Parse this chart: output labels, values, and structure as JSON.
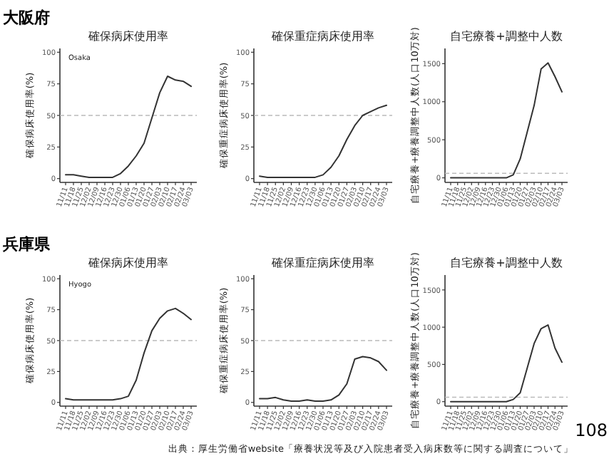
{
  "chart_data": [
    {
      "type": "line",
      "title": "確保病床使用率",
      "ylabel": "確保病床使用率(%)",
      "categories": [
        "11/11",
        "11/18",
        "11/25",
        "12/02",
        "12/09",
        "12/16",
        "12/23",
        "12/30",
        "01/06",
        "01/13",
        "01/20",
        "01/27",
        "02/03",
        "02/10",
        "02/17",
        "02/24",
        "03/03"
      ],
      "values": [
        3,
        3,
        2,
        1,
        1,
        1,
        1,
        4,
        10,
        18,
        28,
        48,
        68,
        81,
        78,
        77,
        73
      ],
      "color": "#333333",
      "ylim": [
        -3,
        103
      ],
      "yticks": [
        0,
        25,
        50,
        75,
        100
      ],
      "ref_lines": [
        {
          "axis": "y",
          "value": 50,
          "color": "#bbbbbb",
          "line_style": "dashed"
        }
      ],
      "annotations": [
        "大阪府",
        "Osaka"
      ]
    },
    {
      "type": "line",
      "title": "確保重症病床使用率",
      "ylabel": "確保重症病床使用率(%)",
      "categories": [
        "11/11",
        "11/18",
        "11/25",
        "12/02",
        "12/09",
        "12/16",
        "12/23",
        "12/30",
        "01/06",
        "01/13",
        "01/20",
        "01/27",
        "02/03",
        "02/10",
        "02/17",
        "02/24",
        "03/03"
      ],
      "values": [
        2,
        1,
        1,
        1,
        1,
        1,
        1,
        1,
        3,
        9,
        18,
        31,
        42,
        50,
        53,
        56,
        58
      ],
      "color": "#333333",
      "ylim": [
        -3,
        103
      ],
      "yticks": [
        0,
        25,
        50,
        75,
        100
      ],
      "ref_lines": [
        {
          "axis": "y",
          "value": 50,
          "color": "#bbbbbb",
          "line_style": "dashed"
        }
      ]
    },
    {
      "type": "line",
      "title": "自宅療養+調整中人数",
      "ylabel": "自宅療養+療養調整中人数(人口10万対)",
      "categories": [
        "11/11",
        "11/18",
        "11/25",
        "12/02",
        "12/09",
        "12/16",
        "12/23",
        "12/30",
        "01/06",
        "01/13",
        "01/20",
        "01/27",
        "02/03",
        "02/10",
        "02/17",
        "02/24",
        "03/03"
      ],
      "values": [
        0,
        0,
        0,
        0,
        0,
        0,
        0,
        0,
        0,
        40,
        250,
        600,
        950,
        1430,
        1510,
        1330,
        1130
      ],
      "color": "#333333",
      "ylim": [
        -60,
        1700
      ],
      "yticks": [
        0,
        500,
        1000,
        1500
      ],
      "ref_lines": [
        {
          "axis": "y",
          "value": 60,
          "color": "#bbbbbb",
          "line_style": "dashed"
        }
      ]
    },
    {
      "type": "line",
      "title": "確保病床使用率",
      "ylabel": "確保病床使用率(%)",
      "categories": [
        "11/11",
        "11/18",
        "11/25",
        "12/02",
        "12/09",
        "12/16",
        "12/23",
        "12/30",
        "01/06",
        "01/13",
        "01/20",
        "01/27",
        "02/03",
        "02/10",
        "02/17",
        "02/24",
        "03/03"
      ],
      "values": [
        3,
        2,
        2,
        2,
        2,
        2,
        2,
        3,
        5,
        18,
        40,
        58,
        68,
        74,
        76,
        72,
        67
      ],
      "color": "#333333",
      "ylim": [
        -3,
        103
      ],
      "yticks": [
        0,
        25,
        50,
        75,
        100
      ],
      "ref_lines": [
        {
          "axis": "y",
          "value": 50,
          "color": "#bbbbbb",
          "line_style": "dashed"
        }
      ],
      "annotations": [
        "兵庫県",
        "Hyogo"
      ]
    },
    {
      "type": "line",
      "title": "確保重症病床使用率",
      "ylabel": "確保重症病床使用率(%)",
      "categories": [
        "11/11",
        "11/18",
        "11/25",
        "12/02",
        "12/09",
        "12/16",
        "12/23",
        "12/30",
        "01/06",
        "01/13",
        "01/20",
        "01/27",
        "02/03",
        "02/10",
        "02/17",
        "02/24",
        "03/03"
      ],
      "values": [
        3,
        3,
        4,
        2,
        1,
        1,
        2,
        1,
        1,
        2,
        6,
        15,
        35,
        37,
        36,
        33,
        26
      ],
      "color": "#333333",
      "ylim": [
        -3,
        103
      ],
      "yticks": [
        0,
        25,
        50,
        75,
        100
      ],
      "ref_lines": [
        {
          "axis": "y",
          "value": 50,
          "color": "#bbbbbb",
          "line_style": "dashed"
        }
      ]
    },
    {
      "type": "line",
      "title": "自宅療養+調整中人数",
      "ylabel": "自宅療養+療養調整中人数(人口10万対)",
      "categories": [
        "11/11",
        "11/18",
        "11/25",
        "12/02",
        "12/09",
        "12/16",
        "12/23",
        "12/30",
        "01/06",
        "01/13",
        "01/20",
        "01/27",
        "02/03",
        "02/10",
        "02/17",
        "02/24",
        "03/03"
      ],
      "values": [
        0,
        0,
        0,
        0,
        0,
        0,
        0,
        0,
        0,
        30,
        120,
        450,
        780,
        980,
        1030,
        720,
        530
      ],
      "color": "#333333",
      "ylim": [
        -60,
        1700
      ],
      "yticks": [
        0,
        500,
        1000,
        1500
      ],
      "ref_lines": [
        {
          "axis": "y",
          "value": 60,
          "color": "#bbbbbb",
          "line_style": "dashed"
        }
      ],
      "annotations": [
        "出典：厚生労働省website「療養状況等及び入院患者受入病床数等に関する調査について」",
        "108"
      ]
    }
  ]
}
